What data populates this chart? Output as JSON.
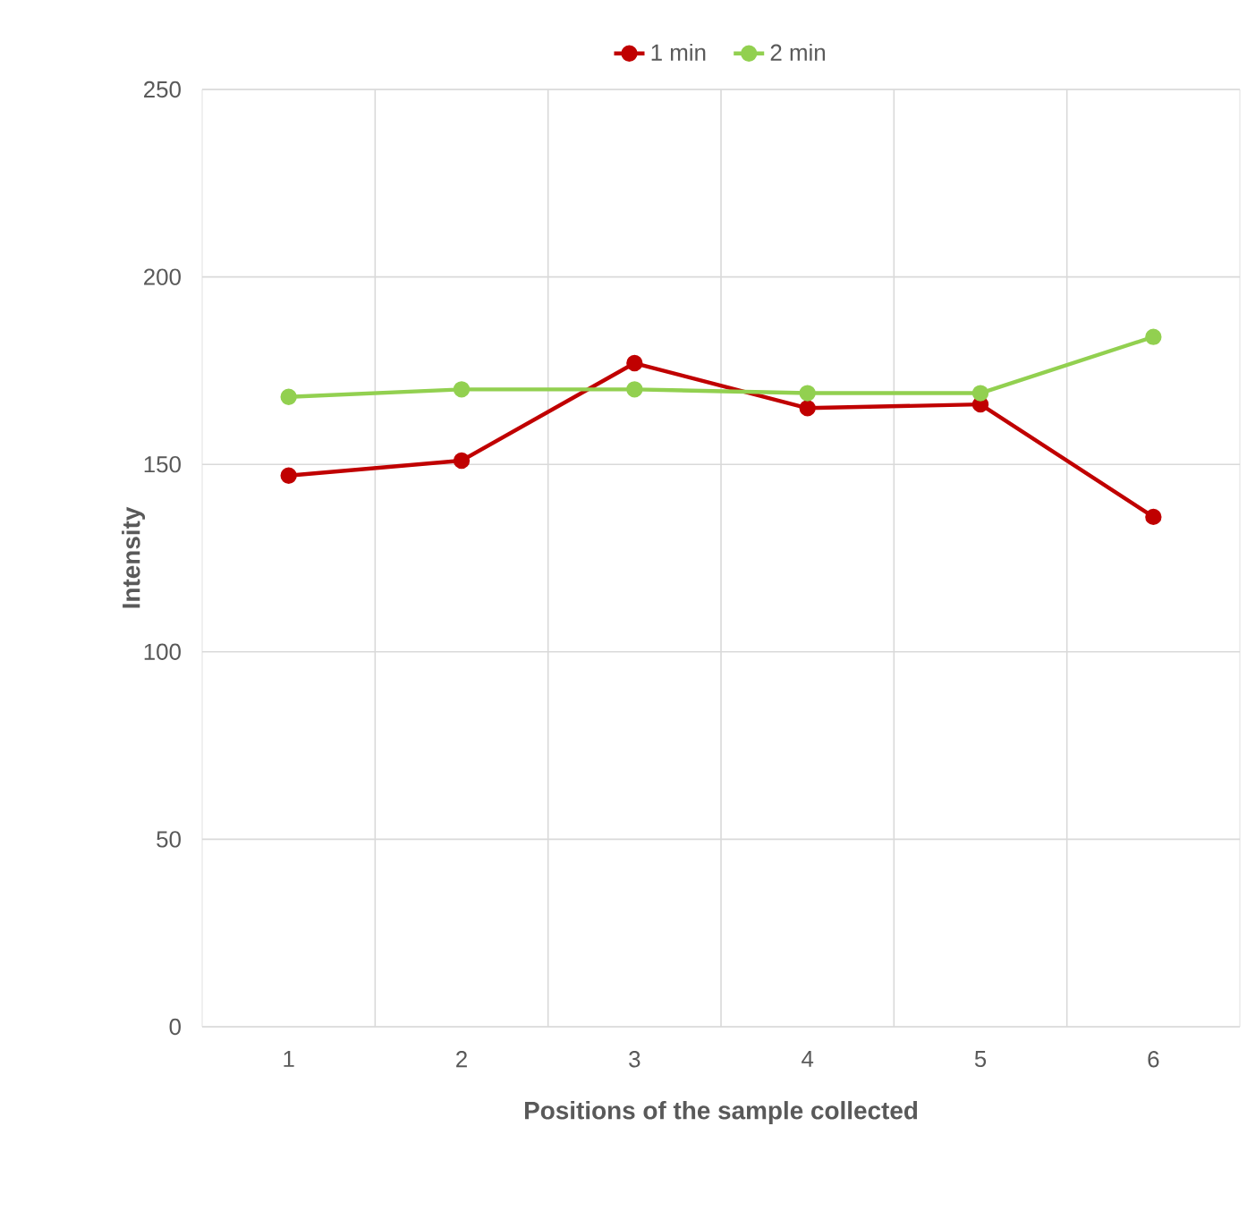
{
  "chart_data": {
    "type": "line",
    "xlabel": "Positions of the sample collected",
    "ylabel": "Intensity",
    "categories": [
      "1",
      "2",
      "3",
      "4",
      "5",
      "6"
    ],
    "series": [
      {
        "name": "1 min",
        "color": "#c00000",
        "values": [
          147,
          151,
          177,
          165,
          166,
          136
        ]
      },
      {
        "name": "2 min",
        "color": "#92d050",
        "values": [
          168,
          170,
          170,
          169,
          169,
          184
        ]
      }
    ],
    "ylim": [
      0,
      250
    ],
    "yticks": [
      0,
      50,
      100,
      150,
      200,
      250
    ],
    "grid": true,
    "legend": "top",
    "marker": "circle",
    "line_style": "solid"
  }
}
